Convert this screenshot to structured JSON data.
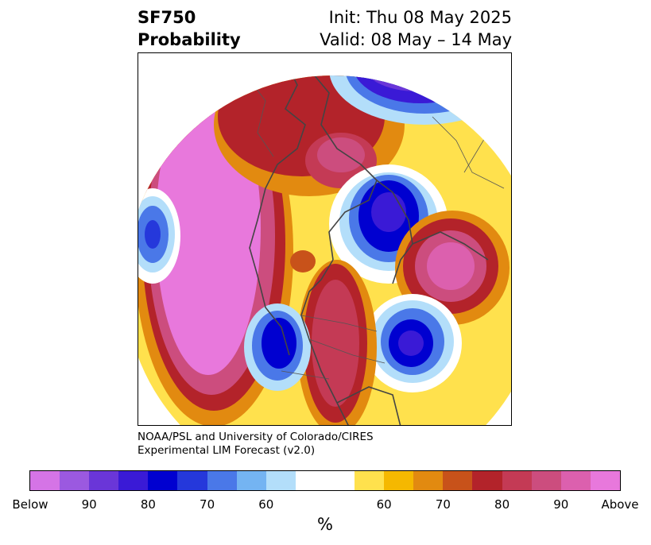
{
  "title": {
    "left_line1": "SF750",
    "left_line2": "Probability",
    "right_line1": "Init: Thu 08 May 2025",
    "right_line2": "Valid: 08 May – 14 May"
  },
  "credit": {
    "line1": "NOAA/PSL and University of Colorado/CIRES",
    "line2": "Experimental LIM Forecast (v2.0)"
  },
  "colorbar": {
    "unit": "%",
    "ticks": [
      "Below",
      "90",
      "80",
      "70",
      "60",
      "60",
      "70",
      "80",
      "90",
      "Above"
    ],
    "colors_below": [
      "#d574e6",
      "#9b59e0",
      "#6a36d8",
      "#3a1ad6",
      "#0000d0",
      "#2538db",
      "#4a78e8",
      "#74b4f2",
      "#b3defa"
    ],
    "neutral": "#ffffff",
    "colors_above": [
      "#ffe14d",
      "#f5b800",
      "#e28a10",
      "#c8521a",
      "#b3232a",
      "#c43a55",
      "#cc4d7e",
      "#dc60ae",
      "#e878dc"
    ]
  },
  "map": {
    "description_colors": {
      "below_strong": "#0000d0",
      "above_strong": "#e878dc"
    }
  }
}
